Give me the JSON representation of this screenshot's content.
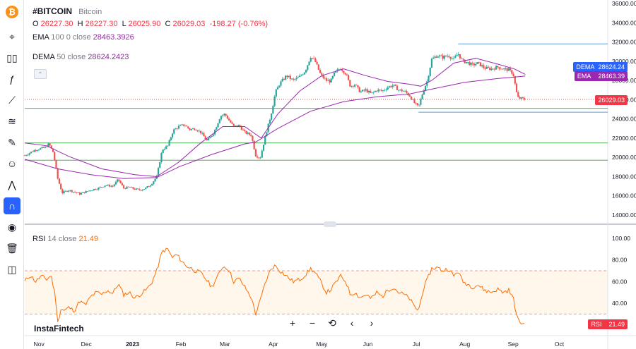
{
  "symbol": {
    "name": "#BITCOIN",
    "description": "Bitcoin"
  },
  "ohlc": {
    "o_label": "O",
    "o": "26227.30",
    "h_label": "H",
    "h": "26227.30",
    "l_label": "L",
    "l": "26025.90",
    "c_label": "C",
    "c": "26029.03",
    "change": "-198.27 (-0.76%)"
  },
  "ema": {
    "label": "EMA",
    "params": "100 0 close",
    "value": "28463.3926",
    "badge": "EMA",
    "badge_value": "28463.39"
  },
  "dema": {
    "label": "DEMA",
    "params": "50 close",
    "value": "28624.2423",
    "badge": "DEMA",
    "badge_value": "28624.24"
  },
  "last_price": "26029.03",
  "rsi": {
    "label": "RSI",
    "params": "14 close",
    "value": "21.49",
    "badge": "RSI",
    "badge_value": "21.49"
  },
  "brand": "InstaFintech",
  "colors": {
    "up": "#26a69a",
    "down": "#ef5350",
    "ema": "#9c27b0",
    "dema": "#9c27b0",
    "rsi": "#ff6d00",
    "blue_line": "#5b9bd5",
    "green_line": "#4caf50",
    "red_dotted": "#ef5350",
    "price_box": "#f23645",
    "ema_box": "#9c27b0",
    "dema_box": "#2962ff"
  },
  "toolbar": {
    "icons": [
      "bitcoin-logo-icon",
      "cursor-icon",
      "candles-icon",
      "fx-icon",
      "trendline-icon",
      "brush-icon",
      "pattern-icon",
      "emoji-icon",
      "measure-icon",
      "magnet-icon",
      "eye-icon",
      "trash-icon",
      "camera-icon"
    ]
  },
  "nav_buttons": [
    "+",
    "−",
    "⟲",
    "‹",
    "›"
  ],
  "chart_data": [
    {
      "type": "candlestick",
      "title": "#BITCOIN",
      "x_ticks": [
        "Nov",
        "Dec",
        "2023",
        "Feb",
        "Mar",
        "Apr",
        "May",
        "Jun",
        "Jul",
        "Aug",
        "Sep",
        "Oct"
      ],
      "y_ticks": [
        "36000.00",
        "34000.00",
        "32000.00",
        "30000.00",
        "28000.00",
        "26000.00",
        "24000.00",
        "22000.00",
        "20000.00",
        "18000.00",
        "16000.00",
        "14000.00"
      ],
      "ylim": [
        13000,
        36000
      ],
      "xlim_weeks": [
        0,
        53
      ],
      "price_path": [
        [
          0,
          20200
        ],
        [
          1,
          20800
        ],
        [
          1.8,
          21000
        ],
        [
          2.2,
          21400
        ],
        [
          2.6,
          20500
        ],
        [
          3,
          17800
        ],
        [
          3.4,
          16300
        ],
        [
          4,
          16600
        ],
        [
          5,
          16200
        ],
        [
          6,
          16600
        ],
        [
          6.7,
          16800
        ],
        [
          7.3,
          17100
        ],
        [
          8,
          17000
        ],
        [
          8.5,
          17700
        ],
        [
          9,
          16800
        ],
        [
          9.5,
          16900
        ],
        [
          10,
          16700
        ],
        [
          10.5,
          16600
        ],
        [
          11,
          16800
        ],
        [
          11.5,
          17200
        ],
        [
          12,
          18000
        ],
        [
          12.5,
          20800
        ],
        [
          13,
          21200
        ],
        [
          13.5,
          22800
        ],
        [
          14,
          23200
        ],
        [
          14.5,
          23400
        ],
        [
          15,
          22900
        ],
        [
          15.5,
          23000
        ],
        [
          16,
          22600
        ],
        [
          16.6,
          21700
        ],
        [
          17.2,
          22600
        ],
        [
          17.8,
          24300
        ],
        [
          18.2,
          24500
        ],
        [
          18.6,
          23800
        ],
        [
          19,
          23200
        ],
        [
          19.5,
          23300
        ],
        [
          20,
          22600
        ],
        [
          20.6,
          22300
        ],
        [
          21,
          20200
        ],
        [
          21.4,
          19900
        ],
        [
          21.9,
          22300
        ],
        [
          22.4,
          24500
        ],
        [
          22.8,
          26800
        ],
        [
          23.2,
          27700
        ],
        [
          23.8,
          28500
        ],
        [
          24.4,
          28000
        ],
        [
          25,
          28400
        ],
        [
          25.5,
          29000
        ],
        [
          26,
          30500
        ],
        [
          26.4,
          30000
        ],
        [
          26.9,
          28600
        ],
        [
          27.4,
          28000
        ],
        [
          27.8,
          27900
        ],
        [
          28.2,
          28800
        ],
        [
          28.7,
          29300
        ],
        [
          29.2,
          28700
        ],
        [
          29.6,
          27400
        ],
        [
          30,
          27600
        ],
        [
          30.5,
          26800
        ],
        [
          31,
          27000
        ],
        [
          31.5,
          26600
        ],
        [
          32,
          27000
        ],
        [
          32.5,
          26900
        ],
        [
          33,
          27300
        ],
        [
          33.5,
          27500
        ],
        [
          34,
          27000
        ],
        [
          34.5,
          26900
        ],
        [
          35,
          26400
        ],
        [
          35.4,
          25700
        ],
        [
          35.8,
          25200
        ],
        [
          36.2,
          26800
        ],
        [
          36.6,
          28000
        ],
        [
          37,
          30200
        ],
        [
          37.5,
          30600
        ],
        [
          38,
          30400
        ],
        [
          38.5,
          30600
        ],
        [
          39,
          30200
        ],
        [
          39.4,
          30800
        ],
        [
          39.8,
          30000
        ],
        [
          40.2,
          29900
        ],
        [
          40.7,
          29600
        ],
        [
          41.2,
          29800
        ],
        [
          41.8,
          29300
        ],
        [
          42.4,
          29200
        ],
        [
          43,
          29400
        ],
        [
          43.5,
          29200
        ],
        [
          44,
          29100
        ],
        [
          44.4,
          28700
        ],
        [
          44.8,
          26200
        ],
        [
          45.2,
          26100
        ],
        [
          45.5,
          26030
        ]
      ],
      "ema100": [
        [
          0,
          19800
        ],
        [
          3,
          18800
        ],
        [
          6,
          18200
        ],
        [
          9,
          17800
        ],
        [
          12,
          17900
        ],
        [
          14,
          19000
        ],
        [
          17,
          20300
        ],
        [
          20,
          21400
        ],
        [
          21,
          21600
        ],
        [
          23,
          23000
        ],
        [
          26,
          24800
        ],
        [
          29,
          25800
        ],
        [
          32,
          26300
        ],
        [
          35,
          26600
        ],
        [
          37,
          27100
        ],
        [
          40,
          27800
        ],
        [
          43,
          28200
        ],
        [
          45,
          28400
        ],
        [
          45.5,
          28463
        ]
      ],
      "dema50": [
        [
          0,
          21500
        ],
        [
          2,
          21200
        ],
        [
          4,
          20100
        ],
        [
          7,
          18800
        ],
        [
          10,
          18200
        ],
        [
          12,
          18000
        ],
        [
          14,
          19500
        ],
        [
          16,
          21500
        ],
        [
          18,
          23200
        ],
        [
          20,
          23200
        ],
        [
          21.5,
          22000
        ],
        [
          23,
          24500
        ],
        [
          25,
          26900
        ],
        [
          27,
          28500
        ],
        [
          29,
          29200
        ],
        [
          31,
          28500
        ],
        [
          33,
          27900
        ],
        [
          35,
          27600
        ],
        [
          36,
          27400
        ],
        [
          37,
          28000
        ],
        [
          39,
          29800
        ],
        [
          41,
          30300
        ],
        [
          43,
          29700
        ],
        [
          44.5,
          29200
        ],
        [
          45.5,
          28624
        ]
      ],
      "levels": [
        {
          "price": 31800,
          "color": "blue"
        },
        {
          "price": 25100,
          "color": "green"
        },
        {
          "price": 24700,
          "color": "blue"
        },
        {
          "price": 21500,
          "color": "green"
        },
        {
          "price": 19700,
          "color": "green"
        },
        {
          "price": 26029,
          "color": "red-dotted"
        }
      ]
    },
    {
      "type": "line",
      "title": "RSI 14 close",
      "y_ticks": [
        "100.00",
        "80.00",
        "60.00",
        "40.00"
      ],
      "ylim": [
        20,
        100
      ],
      "bands": [
        70,
        30
      ],
      "rsi_path": [
        [
          0,
          60
        ],
        [
          0.5,
          66
        ],
        [
          1,
          60
        ],
        [
          1.5,
          65
        ],
        [
          2,
          62
        ],
        [
          2.4,
          66
        ],
        [
          2.8,
          45
        ],
        [
          3,
          22
        ],
        [
          3.3,
          35
        ],
        [
          3.6,
          33
        ],
        [
          4,
          36
        ],
        [
          4.5,
          33
        ],
        [
          5,
          42
        ],
        [
          5.5,
          38
        ],
        [
          6,
          46
        ],
        [
          6.5,
          50
        ],
        [
          7,
          48
        ],
        [
          7.5,
          52
        ],
        [
          8,
          49
        ],
        [
          8.5,
          58
        ],
        [
          9,
          48
        ],
        [
          9.5,
          50
        ],
        [
          10,
          45
        ],
        [
          10.5,
          48
        ],
        [
          11,
          52
        ],
        [
          11.5,
          58
        ],
        [
          12,
          70
        ],
        [
          12.5,
          88
        ],
        [
          13,
          90
        ],
        [
          13.4,
          82
        ],
        [
          13.8,
          85
        ],
        [
          14.2,
          80
        ],
        [
          14.6,
          75
        ],
        [
          15,
          73
        ],
        [
          15.5,
          70
        ],
        [
          16,
          68
        ],
        [
          16.5,
          62
        ],
        [
          17,
          55
        ],
        [
          17.5,
          64
        ],
        [
          18,
          74
        ],
        [
          18.5,
          72
        ],
        [
          19,
          60
        ],
        [
          19.5,
          63
        ],
        [
          20,
          55
        ],
        [
          20.6,
          45
        ],
        [
          21,
          30
        ],
        [
          21.4,
          42
        ],
        [
          21.9,
          60
        ],
        [
          22.4,
          72
        ],
        [
          22.8,
          75
        ],
        [
          23.2,
          70
        ],
        [
          23.8,
          65
        ],
        [
          24.4,
          60
        ],
        [
          25,
          62
        ],
        [
          25.5,
          66
        ],
        [
          26,
          72
        ],
        [
          26.4,
          68
        ],
        [
          26.9,
          60
        ],
        [
          27.4,
          50
        ],
        [
          27.8,
          52
        ],
        [
          28.2,
          58
        ],
        [
          28.7,
          65
        ],
        [
          29.2,
          60
        ],
        [
          29.6,
          48
        ],
        [
          30,
          50
        ],
        [
          30.5,
          45
        ],
        [
          31,
          48
        ],
        [
          31.5,
          44
        ],
        [
          32,
          50
        ],
        [
          32.5,
          46
        ],
        [
          33,
          52
        ],
        [
          33.5,
          55
        ],
        [
          34,
          50
        ],
        [
          34.5,
          48
        ],
        [
          35,
          44
        ],
        [
          35.4,
          37
        ],
        [
          35.8,
          33
        ],
        [
          36.2,
          52
        ],
        [
          36.6,
          62
        ],
        [
          37,
          72
        ],
        [
          37.5,
          73
        ],
        [
          38,
          70
        ],
        [
          38.5,
          72
        ],
        [
          39,
          65
        ],
        [
          39.4,
          70
        ],
        [
          39.8,
          60
        ],
        [
          40.2,
          58
        ],
        [
          40.7,
          55
        ],
        [
          41.2,
          57
        ],
        [
          41.8,
          52
        ],
        [
          42.4,
          50
        ],
        [
          43,
          53
        ],
        [
          43.5,
          50
        ],
        [
          44,
          52
        ],
        [
          44.4,
          45
        ],
        [
          44.8,
          25
        ],
        [
          45.2,
          21
        ],
        [
          45.5,
          21.49
        ]
      ]
    }
  ]
}
